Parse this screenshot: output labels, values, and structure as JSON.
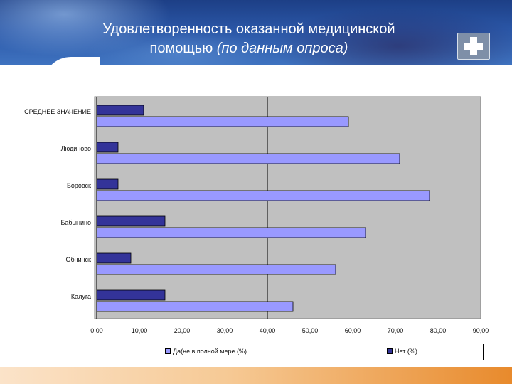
{
  "header": {
    "title_line1": "Удовлетворенность  оказанной медицинской",
    "title_line2_prefix": "помощью ",
    "title_line2_italic": "(по данным опроса)"
  },
  "colors": {
    "series_full": "#9999ff",
    "series_no": "#333399",
    "plot_bg": "#c0c0c0",
    "banner": "#2a56a6",
    "bottom_bar": "#e88a2c"
  },
  "icons": {
    "logo": "medical-cross-icon"
  },
  "chart_data": {
    "type": "bar",
    "orientation": "horizontal",
    "categories": [
      "СРЕДНЕЕ ЗНАЧЕНИЕ",
      "Людиново",
      "Боровск",
      "Бабынино",
      "Обнинск",
      "Калуга"
    ],
    "series": [
      {
        "name": "Нет (%)",
        "values": [
          11,
          5,
          5,
          16,
          8,
          16
        ]
      },
      {
        "name": "Да(не в полной мере (%)",
        "values": [
          59,
          71,
          78,
          63,
          56,
          46
        ]
      }
    ],
    "xlim": [
      0,
      90
    ],
    "ticks": [
      "0,00",
      "10,00",
      "20,00",
      "30,00",
      "40,00",
      "50,00",
      "60,00",
      "70,00",
      "80,00",
      "90,00"
    ],
    "reference_line_at": 40,
    "legend": [
      "Да(не в полной мере (%)",
      "Нет (%)"
    ],
    "legend_position": "bottom"
  }
}
